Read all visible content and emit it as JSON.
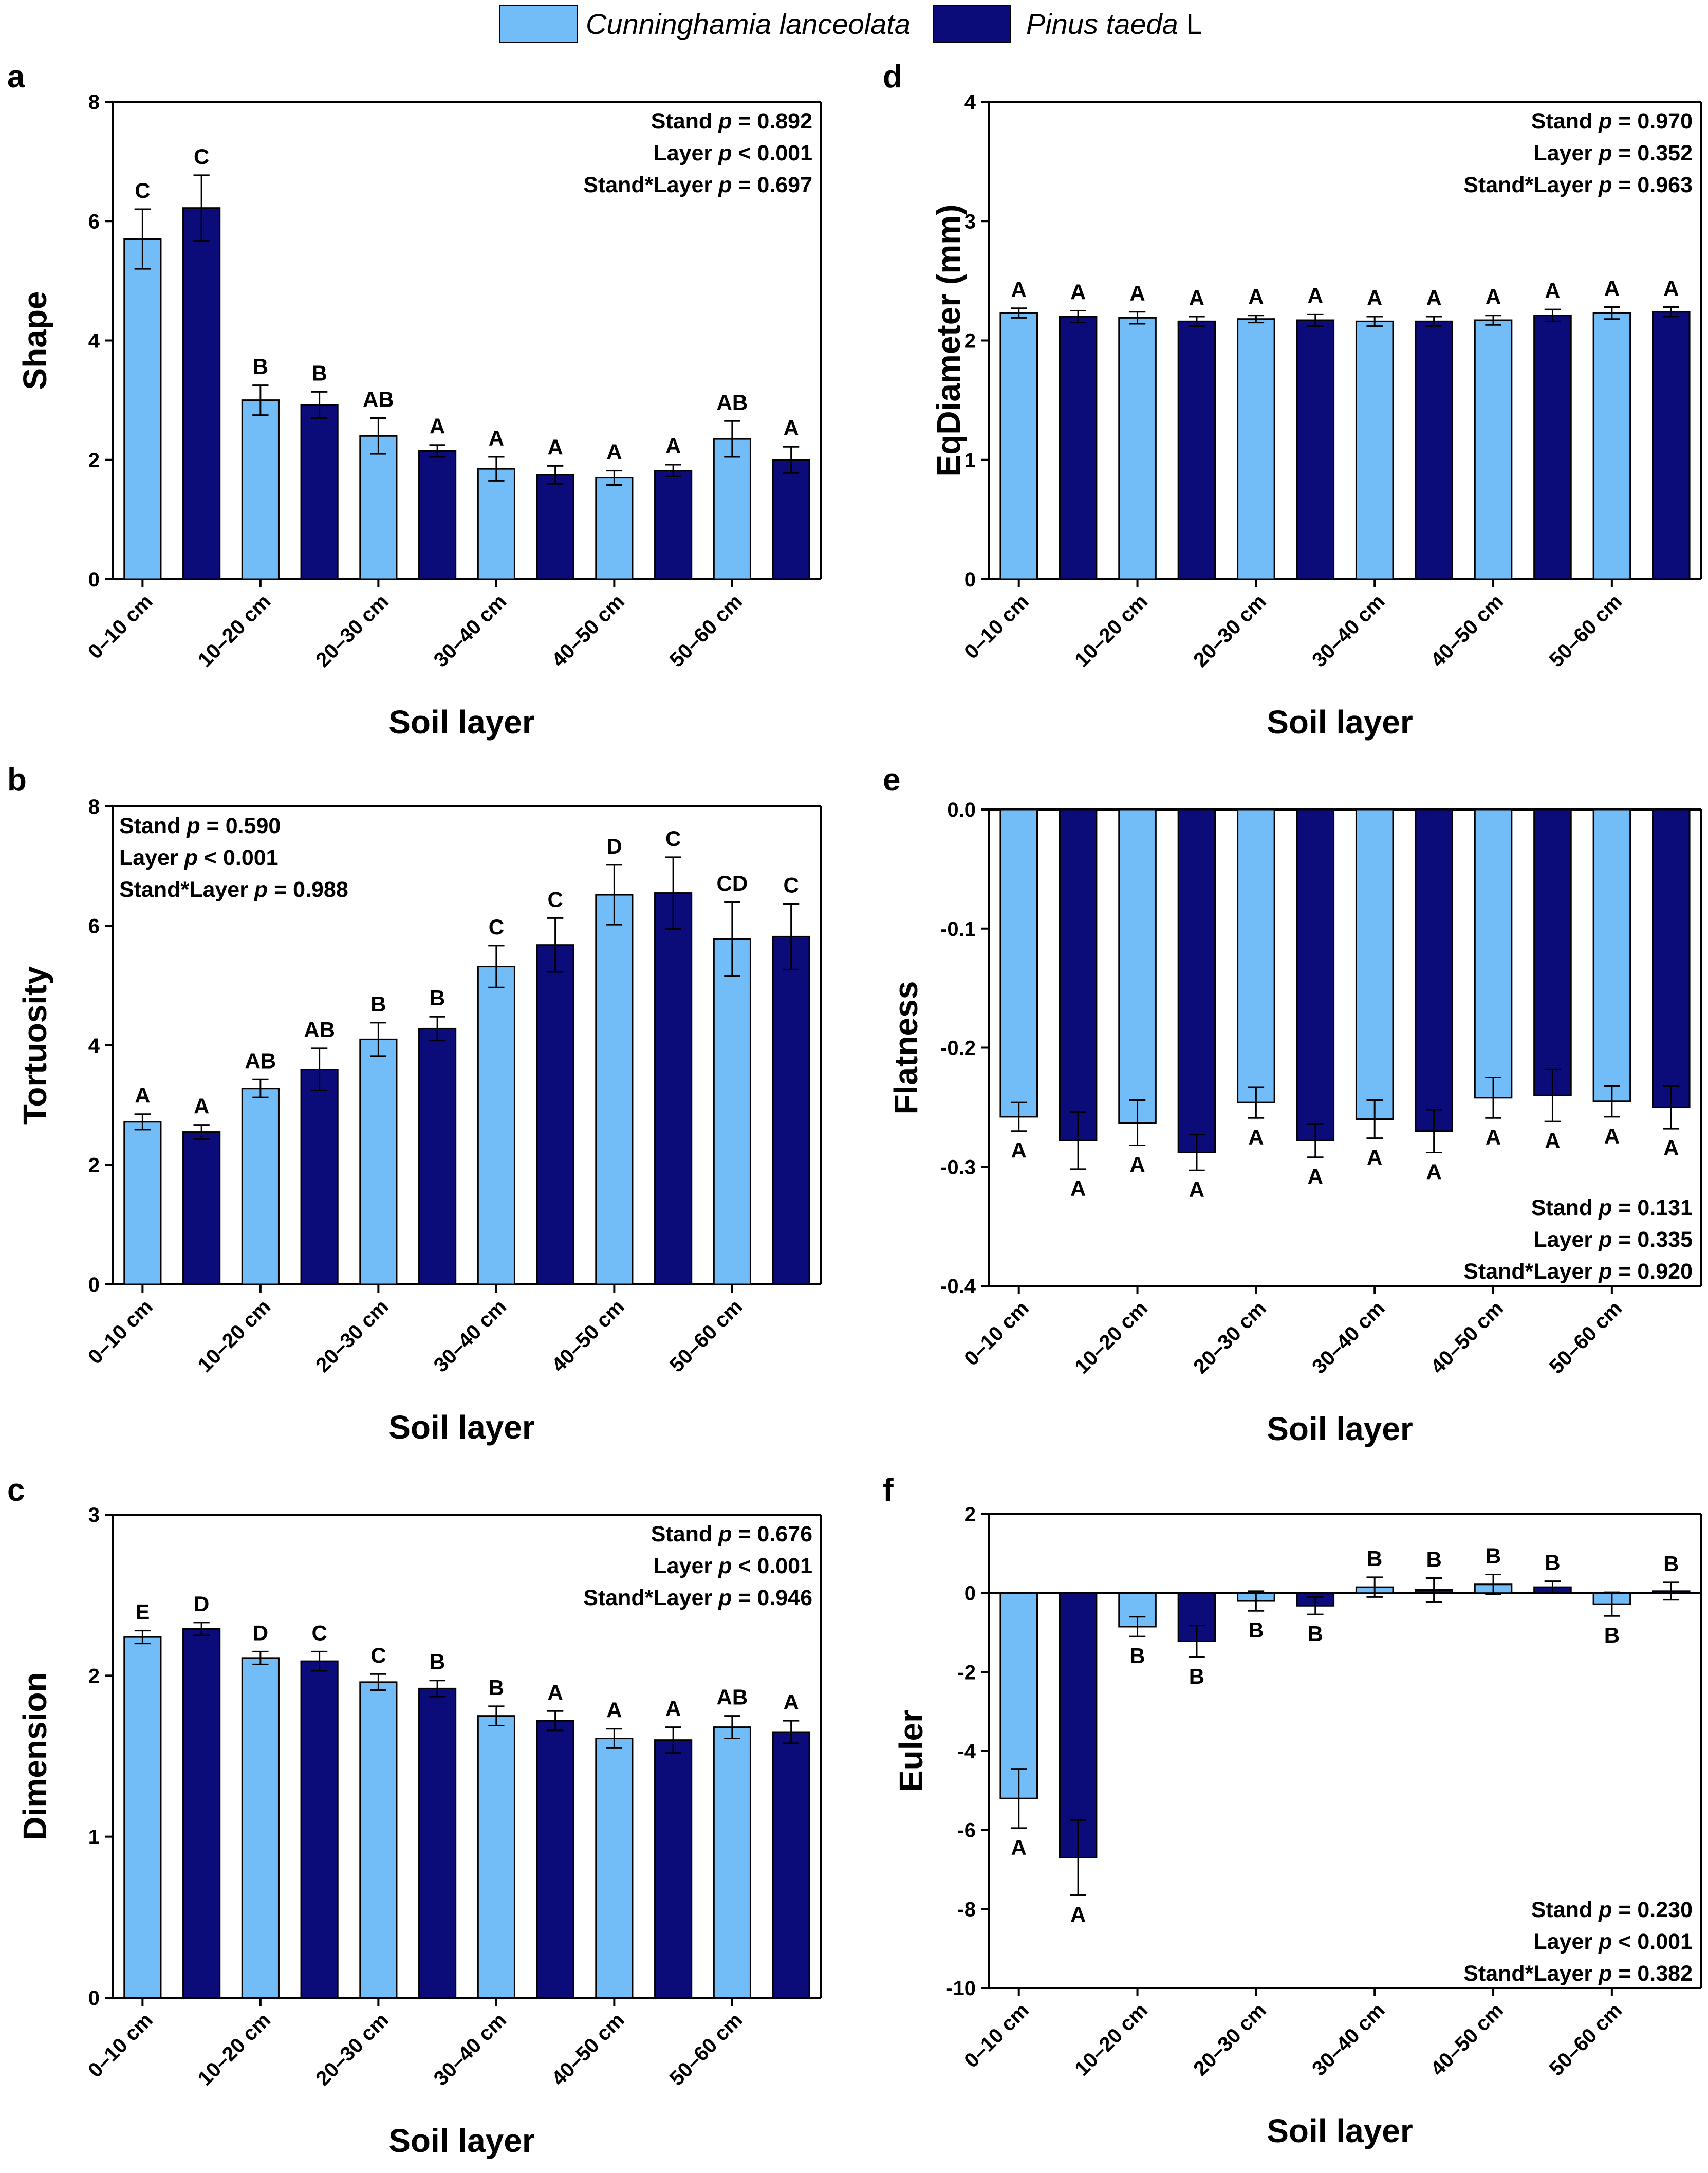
{
  "colors": {
    "cunninghamia": "#72bcf7",
    "pinus": "#0b0b7a"
  },
  "legend": {
    "cunninghamia": "Cunninghamia lanceolata",
    "pinus_italic": "Pinus taeda",
    "pinus_suffix": " L"
  },
  "chart_data": [
    {
      "panel": "a",
      "type": "bar",
      "ylabel": "Shape",
      "xlabel": "Soil layer",
      "categories": [
        "0–10 cm",
        "10–20 cm",
        "20–30 cm",
        "30–40 cm",
        "40–50 cm",
        "50–60 cm"
      ],
      "ylim": [
        0,
        8
      ],
      "yticks": [
        0,
        2,
        4,
        6,
        8
      ],
      "ytick_labels": [
        "0",
        "2",
        "4",
        "6",
        "8"
      ],
      "series": [
        {
          "name": "Cunninghamia lanceolata",
          "values": [
            5.7,
            3.0,
            2.4,
            1.85,
            1.7,
            2.35
          ],
          "errors": [
            0.5,
            0.25,
            0.3,
            0.2,
            0.12,
            0.3
          ],
          "letters": [
            "C",
            "B",
            "AB",
            "A",
            "A",
            "AB"
          ]
        },
        {
          "name": "Pinus taeda L",
          "values": [
            6.22,
            2.92,
            2.15,
            1.75,
            1.82,
            2.0
          ],
          "errors": [
            0.55,
            0.22,
            0.1,
            0.15,
            0.1,
            0.22
          ],
          "letters": [
            "C",
            "B",
            "A",
            "A",
            "A",
            "A"
          ]
        }
      ],
      "stats": [
        {
          "pre": "Stand ",
          "p": "p",
          "post": " = 0.892"
        },
        {
          "pre": "Layer ",
          "p": "p",
          "post": " < 0.001"
        },
        {
          "pre": "Stand*Layer ",
          "p": "p",
          "post": " = 0.697"
        }
      ],
      "stats_position": "top-right"
    },
    {
      "panel": "b",
      "type": "bar",
      "ylabel": "Tortuosity",
      "xlabel": "Soil layer",
      "categories": [
        "0–10 cm",
        "10–20 cm",
        "20–30 cm",
        "30–40 cm",
        "40–50 cm",
        "50–60 cm"
      ],
      "ylim": [
        0,
        8
      ],
      "yticks": [
        0,
        2,
        4,
        6,
        8
      ],
      "ytick_labels": [
        "0",
        "2",
        "4",
        "6",
        "8"
      ],
      "series": [
        {
          "name": "Cunninghamia lanceolata",
          "values": [
            2.72,
            3.28,
            4.1,
            5.32,
            6.52,
            5.78
          ],
          "errors": [
            0.13,
            0.15,
            0.28,
            0.35,
            0.5,
            0.62
          ],
          "letters": [
            "A",
            "AB",
            "B",
            "C",
            "D",
            "CD"
          ]
        },
        {
          "name": "Pinus taeda L",
          "values": [
            2.55,
            3.6,
            4.28,
            5.68,
            6.55,
            5.82
          ],
          "errors": [
            0.12,
            0.35,
            0.2,
            0.45,
            0.6,
            0.55
          ],
          "letters": [
            "A",
            "AB",
            "B",
            "C",
            "C",
            "C"
          ]
        }
      ],
      "stats": [
        {
          "pre": "Stand ",
          "p": "p",
          "post": " = 0.590"
        },
        {
          "pre": "Layer ",
          "p": "p",
          "post": " < 0.001"
        },
        {
          "pre": "Stand*Layer ",
          "p": "p",
          "post": " = 0.988"
        }
      ],
      "stats_position": "top-left"
    },
    {
      "panel": "c",
      "type": "bar",
      "ylabel": "Dimension",
      "xlabel": "Soil layer",
      "categories": [
        "0–10 cm",
        "10–20 cm",
        "20–30 cm",
        "30–40 cm",
        "40–50 cm",
        "50–60 cm"
      ],
      "ylim": [
        0,
        3
      ],
      "yticks": [
        0,
        1,
        2,
        3
      ],
      "ytick_labels": [
        "0",
        "1",
        "2",
        "3"
      ],
      "series": [
        {
          "name": "Cunninghamia lanceolata",
          "values": [
            2.24,
            2.11,
            1.96,
            1.75,
            1.61,
            1.68
          ],
          "errors": [
            0.04,
            0.04,
            0.05,
            0.06,
            0.06,
            0.07
          ],
          "letters": [
            "E",
            "D",
            "C",
            "B",
            "A",
            "AB"
          ]
        },
        {
          "name": "Pinus taeda L",
          "values": [
            2.29,
            2.09,
            1.92,
            1.72,
            1.6,
            1.65
          ],
          "errors": [
            0.04,
            0.06,
            0.05,
            0.06,
            0.08,
            0.07
          ],
          "letters": [
            "D",
            "C",
            "B",
            "A",
            "A",
            "A"
          ]
        }
      ],
      "stats": [
        {
          "pre": "Stand ",
          "p": "p",
          "post": " = 0.676"
        },
        {
          "pre": "Layer ",
          "p": "p",
          "post": " < 0.001"
        },
        {
          "pre": "Stand*Layer ",
          "p": "p",
          "post": " = 0.946"
        }
      ],
      "stats_position": "top-right"
    },
    {
      "panel": "d",
      "type": "bar",
      "ylabel": "EqDiameter (mm)",
      "xlabel": "Soil layer",
      "categories": [
        "0–10 cm",
        "10–20 cm",
        "20–30 cm",
        "30–40 cm",
        "40–50 cm",
        "50–60 cm"
      ],
      "ylim": [
        0,
        4
      ],
      "yticks": [
        0,
        1,
        2,
        3,
        4
      ],
      "ytick_labels": [
        "0",
        "1",
        "2",
        "3",
        "4"
      ],
      "series": [
        {
          "name": "Cunninghamia lanceolata",
          "values": [
            2.23,
            2.19,
            2.18,
            2.16,
            2.17,
            2.23
          ],
          "errors": [
            0.04,
            0.05,
            0.03,
            0.04,
            0.04,
            0.05
          ],
          "letters": [
            "A",
            "A",
            "A",
            "A",
            "A",
            "A"
          ]
        },
        {
          "name": "Pinus taeda L",
          "values": [
            2.2,
            2.16,
            2.17,
            2.16,
            2.21,
            2.24
          ],
          "errors": [
            0.05,
            0.04,
            0.05,
            0.04,
            0.05,
            0.04
          ],
          "letters": [
            "A",
            "A",
            "A",
            "A",
            "A",
            "A"
          ]
        }
      ],
      "stats": [
        {
          "pre": "Stand ",
          "p": "p",
          "post": " = 0.970"
        },
        {
          "pre": "Layer ",
          "p": "p",
          "post": " = 0.352"
        },
        {
          "pre": "Stand*Layer ",
          "p": "p",
          "post": " = 0.963"
        }
      ],
      "stats_position": "top-right"
    },
    {
      "panel": "e",
      "type": "bar",
      "ylabel": "Flatness",
      "xlabel": "Soil layer",
      "categories": [
        "0–10 cm",
        "10–20 cm",
        "20–30 cm",
        "30–40 cm",
        "40–50 cm",
        "50–60 cm"
      ],
      "ylim": [
        -0.4,
        0
      ],
      "yticks": [
        -0.4,
        -0.3,
        -0.2,
        -0.1,
        0
      ],
      "ytick_labels": [
        "-0.4",
        "-0.3",
        "-0.2",
        "-0.1",
        "0.0"
      ],
      "series": [
        {
          "name": "Cunninghamia lanceolata",
          "values": [
            -0.258,
            -0.263,
            -0.246,
            -0.26,
            -0.242,
            -0.245
          ],
          "errors": [
            0.012,
            0.019,
            0.013,
            0.016,
            0.017,
            0.013
          ],
          "letters": [
            "A",
            "A",
            "A",
            "A",
            "A",
            "A"
          ]
        },
        {
          "name": "Pinus taeda L",
          "values": [
            -0.278,
            -0.288,
            -0.278,
            -0.27,
            -0.24,
            -0.25
          ],
          "errors": [
            0.024,
            0.015,
            0.014,
            0.018,
            0.022,
            0.018
          ],
          "letters": [
            "A",
            "A",
            "A",
            "A",
            "A",
            "A"
          ]
        }
      ],
      "stats": [
        {
          "pre": "Stand ",
          "p": "p",
          "post": " = 0.131"
        },
        {
          "pre": "Layer ",
          "p": "p",
          "post": " = 0.335"
        },
        {
          "pre": "Stand*Layer ",
          "p": "p",
          "post": " = 0.920"
        }
      ],
      "stats_position": "bottom-right"
    },
    {
      "panel": "f",
      "type": "bar",
      "ylabel": "Euler",
      "xlabel": "Soil layer",
      "categories": [
        "0–10 cm",
        "10–20 cm",
        "20–30 cm",
        "30–40 cm",
        "40–50 cm",
        "50–60 cm"
      ],
      "ylim": [
        -10,
        2
      ],
      "yticks": [
        -10,
        -8,
        -6,
        -4,
        -2,
        0,
        2
      ],
      "ytick_labels": [
        "-10",
        "-8",
        "-6",
        "-4",
        "-2",
        "0",
        "2"
      ],
      "series": [
        {
          "name": "Cunninghamia lanceolata",
          "values": [
            -5.2,
            -0.85,
            -0.2,
            0.15,
            0.22,
            -0.28
          ],
          "errors": [
            0.75,
            0.25,
            0.25,
            0.25,
            0.25,
            0.3
          ],
          "letters": [
            "A",
            "B",
            "B",
            "B",
            "B",
            "B"
          ]
        },
        {
          "name": "Pinus taeda L",
          "values": [
            -6.7,
            -1.22,
            -0.32,
            0.08,
            0.15,
            0.05
          ],
          "errors": [
            0.95,
            0.4,
            0.22,
            0.3,
            0.15,
            0.22
          ],
          "letters": [
            "A",
            "B",
            "B",
            "B",
            "B",
            "B"
          ]
        }
      ],
      "stats": [
        {
          "pre": "Stand ",
          "p": "p",
          "post": " = 0.230"
        },
        {
          "pre": "Layer ",
          "p": "p",
          "post": " < 0.001"
        },
        {
          "pre": "Stand*Layer ",
          "p": "p",
          "post": " = 0.382"
        }
      ],
      "stats_position": "bottom-right"
    }
  ]
}
